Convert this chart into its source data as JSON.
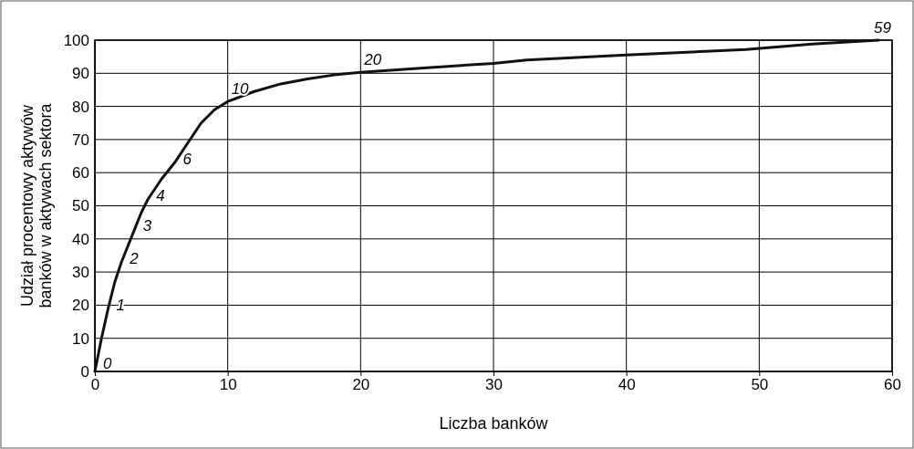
{
  "chart_data": {
    "type": "line",
    "xlabel": "Liczba banków",
    "ylabel": "Udział procentowy aktywów\nbanków w aktywach sektora",
    "x": [
      0,
      0.5,
      1,
      1.5,
      2,
      2.5,
      3,
      3.5,
      4,
      5,
      6,
      7,
      8,
      9,
      10,
      12,
      14,
      16,
      18,
      20,
      25,
      30,
      32.5,
      40,
      49,
      54,
      59
    ],
    "series": [
      {
        "color": "#111111",
        "values": [
          0,
          10,
          19,
          27,
          33,
          38,
          43,
          48,
          52,
          58,
          63,
          69,
          75,
          79,
          81.5,
          84.5,
          86.8,
          88.3,
          89.5,
          90.3,
          91.7,
          93,
          94,
          95.5,
          97.2,
          98.8,
          100
        ]
      }
    ],
    "xlim": [
      0,
      60
    ],
    "xticks": [
      0,
      10,
      20,
      30,
      40,
      50,
      60
    ],
    "ylim": [
      0,
      100
    ],
    "yticks": [
      0,
      10,
      20,
      30,
      40,
      50,
      60,
      70,
      80,
      90,
      100
    ],
    "grid": true,
    "marker": "none",
    "line_style": "solid",
    "annotations": [
      {
        "text": "0",
        "x": 0,
        "y": 0
      },
      {
        "text": "1",
        "x": 1,
        "y": 19
      },
      {
        "text": "2",
        "x": 2,
        "y": 33
      },
      {
        "text": "3",
        "x": 3,
        "y": 43
      },
      {
        "text": "4",
        "x": 4,
        "y": 52
      },
      {
        "text": "6",
        "x": 6,
        "y": 63
      },
      {
        "text": "10",
        "x": 10,
        "y": 81.5
      },
      {
        "text": "20",
        "x": 20,
        "y": 90.3
      },
      {
        "text": "59",
        "x": 59,
        "y": 100
      }
    ]
  }
}
